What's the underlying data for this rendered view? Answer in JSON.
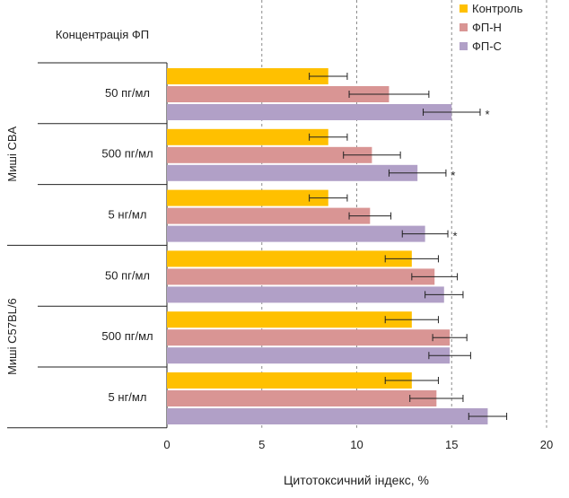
{
  "chart_data": {
    "type": "bar",
    "orientation": "horizontal",
    "header_label": "Концентрація ФП",
    "xlabel": "Цитотоксичний індекс, %",
    "xlim": [
      0,
      20
    ],
    "xticks": [
      0,
      5,
      10,
      15,
      20
    ],
    "grid": "vertical dashed",
    "legend_position": "top-right",
    "groups": [
      {
        "name": "Миші CBA",
        "rows": [
          {
            "label": "50 пг/мл",
            "values": [
              8.5,
              11.7,
              15.0
            ],
            "errors": [
              1.0,
              2.1,
              1.5
            ],
            "marker": "*"
          },
          {
            "label": "500 пг/мл",
            "values": [
              8.5,
              10.8,
              13.2
            ],
            "errors": [
              1.0,
              1.5,
              1.5
            ],
            "marker": "*"
          },
          {
            "label": "5 нг/мл",
            "values": [
              8.5,
              10.7,
              13.6
            ],
            "errors": [
              1.0,
              1.1,
              1.2
            ],
            "marker": "*"
          }
        ]
      },
      {
        "name": "Миші C57BL/6",
        "rows": [
          {
            "label": "50 пг/мл",
            "values": [
              12.9,
              14.1,
              14.6
            ],
            "errors": [
              1.4,
              1.2,
              1.0
            ],
            "marker": ""
          },
          {
            "label": "500 пг/мл",
            "values": [
              12.9,
              14.9,
              14.9
            ],
            "errors": [
              1.4,
              0.9,
              1.1
            ],
            "marker": ""
          },
          {
            "label": "5 нг/мл",
            "values": [
              12.9,
              14.2,
              16.9
            ],
            "errors": [
              1.4,
              1.4,
              1.0
            ],
            "marker": ""
          }
        ]
      }
    ],
    "series": [
      {
        "name": "Контроль",
        "color": "#FFC000"
      },
      {
        "name": "ФП-Н",
        "color": "#D99594"
      },
      {
        "name": "ФП-С",
        "color": "#B1A0C7"
      }
    ]
  }
}
